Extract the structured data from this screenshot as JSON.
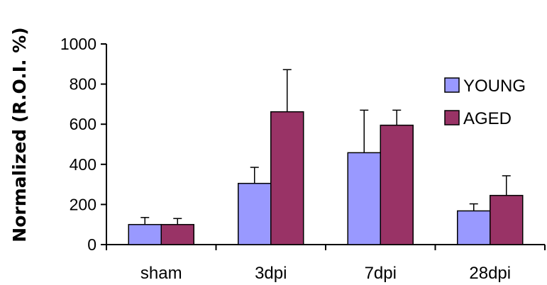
{
  "chart_data": {
    "type": "bar",
    "categories": [
      "sham",
      "3dpi",
      "7dpi",
      "28dpi"
    ],
    "series": [
      {
        "name": "YOUNG",
        "values": [
          100,
          305,
          458,
          168
        ],
        "errors": [
          35,
          80,
          212,
          35
        ],
        "color": "#9999ff"
      },
      {
        "name": "AGED",
        "values": [
          100,
          662,
          595,
          245
        ],
        "errors": [
          30,
          210,
          75,
          98
        ],
        "color": "#993366"
      }
    ],
    "title": "",
    "xlabel": "",
    "ylabel": "Normalized (R.O.I. %)",
    "ylim": [
      0,
      1000
    ],
    "yticks": [
      0,
      200,
      400,
      600,
      800,
      1000
    ],
    "grid": false,
    "legend_position": "right"
  }
}
